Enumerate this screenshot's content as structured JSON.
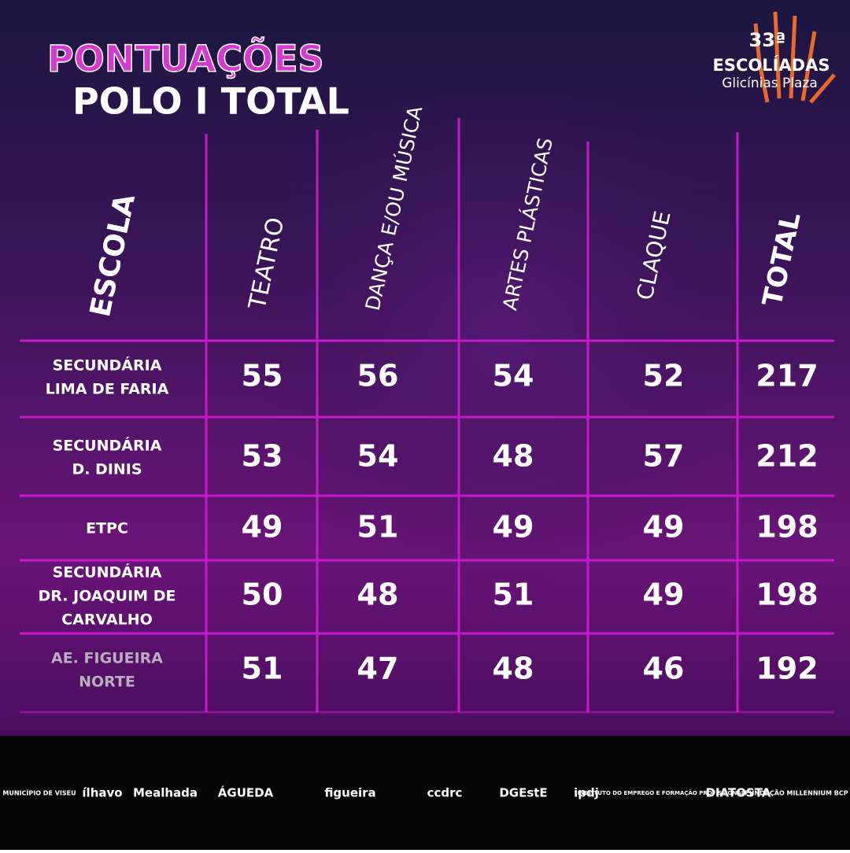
{
  "header": {
    "title": "PONTUAÇÕES",
    "subtitle": "POLO I TOTAL"
  },
  "logo": {
    "number": "33ª",
    "name": "ESCOLÍADAS",
    "place": "Glicínias Plaza"
  },
  "table": {
    "columns": [
      "ESCOLA",
      "TEATRO",
      "DANÇA E/OU MÚSICA",
      "ARTES PLÁSTICAS",
      "CLAQUE",
      "TOTAL"
    ],
    "rows": [
      [
        [
          "SECUNDÁRIA",
          "LIMA DE FARIA"
        ],
        55,
        56,
        54,
        52,
        217
      ],
      [
        [
          "SECUNDÁRIA",
          "D. DINIS"
        ],
        53,
        54,
        48,
        57,
        212
      ],
      [
        [
          "ETPC"
        ],
        49,
        51,
        49,
        49,
        198
      ],
      [
        [
          "SECUNDÁRIA",
          "DR. JOAQUIM DE",
          "CARVALHO"
        ],
        50,
        48,
        51,
        49,
        198
      ],
      [
        [
          "AE. FIGUEIRA",
          "NORTE"
        ],
        51,
        47,
        48,
        46,
        192
      ]
    ]
  },
  "sponsors": [
    "MUNICÍPIO DE VISEU",
    "ílhavo",
    "Mealhada",
    "ÁGUEDA",
    "figueira",
    "ccdrc",
    "DGEstE",
    "ipdj",
    "INSTITUTO DO EMPREGO E FORMAÇÃO PROFISSIONAL",
    "DIATOSTA",
    "FUNDAÇÃO MILLENNIUM BCP"
  ]
}
